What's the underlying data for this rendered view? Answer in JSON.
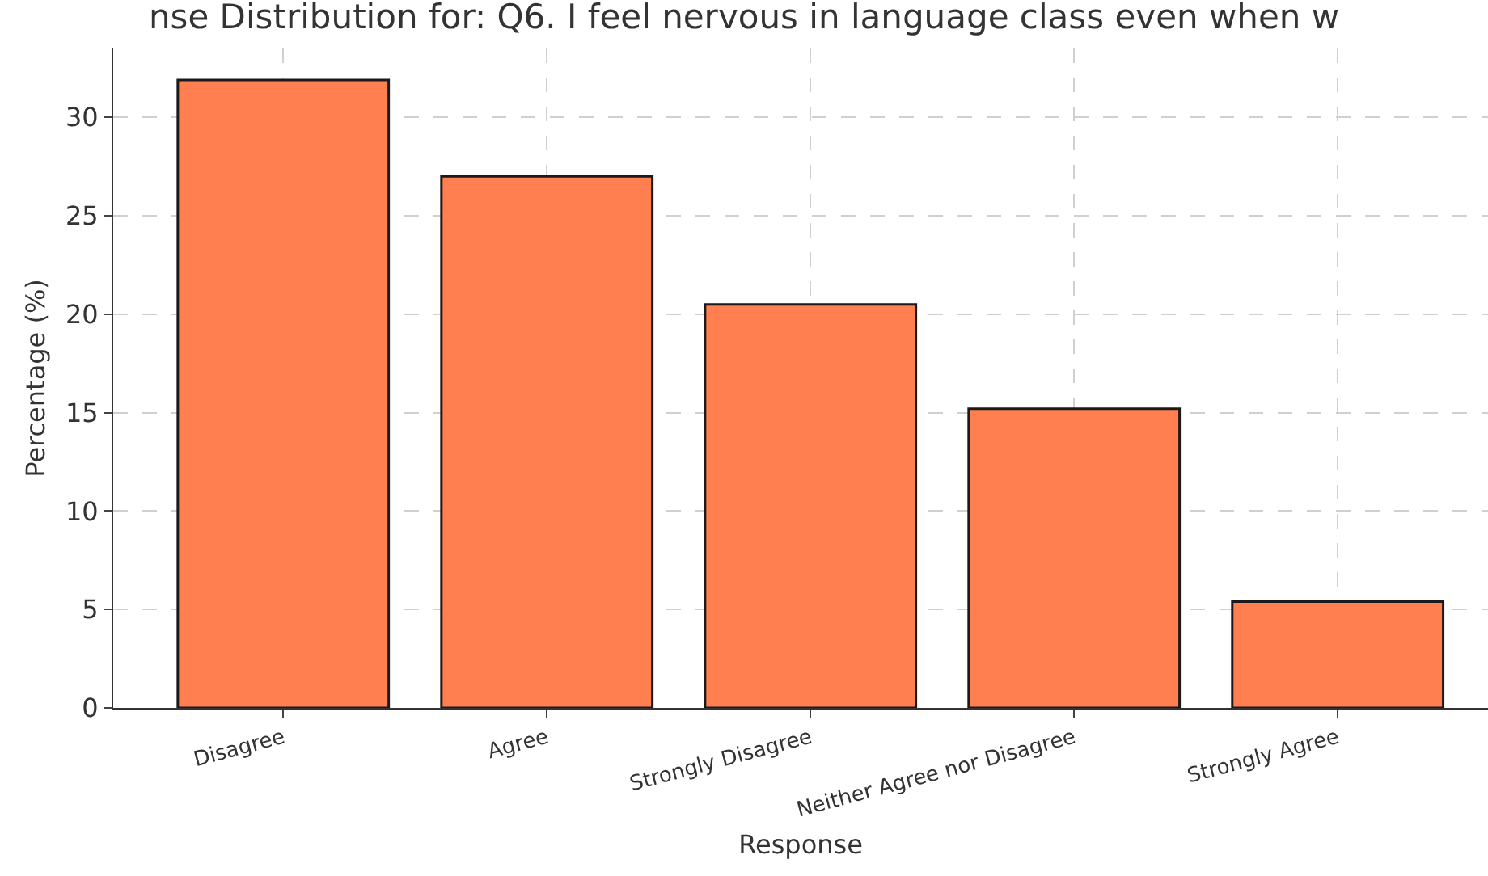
{
  "chart_data": {
    "type": "bar",
    "title": "nse Distribution for: Q6. I feel nervous in language class even when w",
    "xlabel": "Response",
    "ylabel": "Percentage (%)",
    "categories": [
      "Disagree",
      "Agree",
      "Strongly Disagree",
      "Neither Agree nor Disagree",
      "Strongly Agree"
    ],
    "values": [
      31.9,
      27.0,
      20.5,
      15.2,
      5.4
    ],
    "color": "#ff7f50",
    "ylim": [
      0,
      33.5
    ],
    "yticks": [
      0,
      5,
      10,
      15,
      20,
      25,
      30
    ],
    "grid": true
  }
}
